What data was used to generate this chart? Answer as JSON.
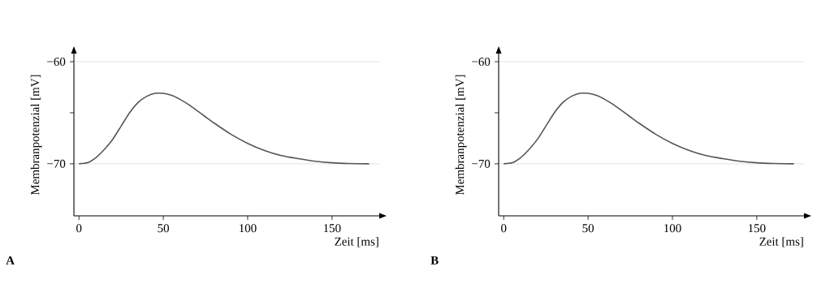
{
  "chart_data": [
    {
      "type": "line",
      "xlabel": "Zeit [ms]",
      "ylabel": "Membranpotenzial [mV]",
      "annotations": [
        "A"
      ],
      "x": [
        0,
        5,
        10,
        15,
        20,
        25,
        30,
        35,
        40,
        45,
        50,
        55,
        60,
        65,
        70,
        75,
        80,
        90,
        100,
        110,
        120,
        130,
        140,
        150,
        160,
        172
      ],
      "series": [
        {
          "color": "#555555",
          "values": [
            -70,
            -69.9,
            -69.4,
            -68.6,
            -67.6,
            -66.3,
            -65,
            -64,
            -63.4,
            -63.1,
            -63.1,
            -63.3,
            -63.7,
            -64.2,
            -64.8,
            -65.4,
            -66,
            -67.1,
            -68,
            -68.7,
            -69.2,
            -69.5,
            -69.75,
            -69.9,
            -69.97,
            -70
          ]
        }
      ],
      "xlim": [
        -3,
        178
      ],
      "ylim": [
        -75.1,
        -59.2
      ],
      "xticks": [
        0,
        50,
        100,
        150
      ],
      "yticks": [
        {
          "value": -70,
          "label": "−70"
        },
        {
          "value": -65,
          "label": null
        },
        {
          "value": -60,
          "label": "−60"
        }
      ],
      "grid": "y",
      "line_style": "solid",
      "marker": "none"
    },
    {
      "type": "line",
      "xlabel": "Zeit [ms]",
      "ylabel": "Membranpotenzial [mV]",
      "annotations": [
        "B"
      ],
      "x": [
        0,
        5,
        10,
        15,
        20,
        25,
        30,
        35,
        40,
        45,
        50,
        55,
        60,
        65,
        70,
        75,
        80,
        90,
        100,
        110,
        120,
        130,
        140,
        150,
        160,
        172
      ],
      "series": [
        {
          "color": "#555555",
          "values": [
            -70,
            -69.9,
            -69.4,
            -68.6,
            -67.6,
            -66.3,
            -65,
            -64,
            -63.4,
            -63.1,
            -63.1,
            -63.3,
            -63.7,
            -64.2,
            -64.8,
            -65.4,
            -66,
            -67.1,
            -68,
            -68.7,
            -69.2,
            -69.5,
            -69.75,
            -69.9,
            -69.97,
            -70
          ]
        }
      ],
      "xlim": [
        -3,
        178
      ],
      "ylim": [
        -75.1,
        -59.2
      ],
      "xticks": [
        0,
        50,
        100,
        150
      ],
      "yticks": [
        {
          "value": -70,
          "label": "−70"
        },
        {
          "value": -65,
          "label": null
        },
        {
          "value": -60,
          "label": "−60"
        }
      ],
      "grid": "y",
      "line_style": "solid",
      "marker": "none"
    }
  ]
}
